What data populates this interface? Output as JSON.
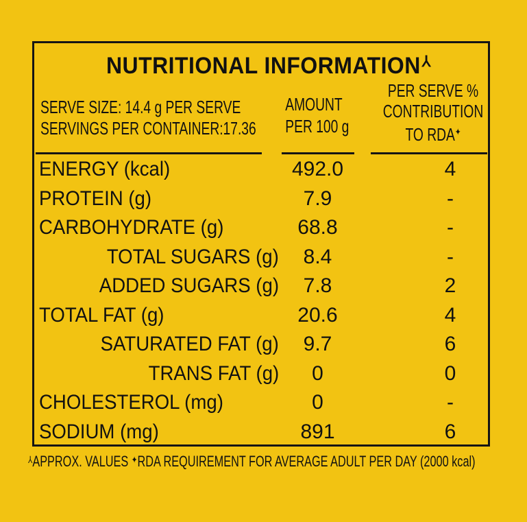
{
  "title": "NUTRITIONAL INFORMATION",
  "title_mark": "⅄",
  "serve_size": "SERVE SIZE: 14.4 g PER SERVE",
  "servings_per_container": "SERVINGS PER CONTAINER:17.36",
  "col_amount": {
    "line1": "AMOUNT",
    "line2": "PER 100 g"
  },
  "col_rda": {
    "line1": "PER SERVE %",
    "line2": "CONTRIBUTION",
    "line3": "TO RDA",
    "mark": "✦"
  },
  "rows": [
    {
      "name": "ENERGY (kcal)",
      "amount": "492.0",
      "rda": "4"
    },
    {
      "name": "PROTEIN (g)",
      "amount": "7.9",
      "rda": "-"
    },
    {
      "name": "CARBOHYDRATE (g)",
      "amount": "68.8",
      "rda": "-"
    },
    {
      "name": "TOTAL SUGARS (g)",
      "amount": "8.4",
      "rda": "-"
    },
    {
      "name": "ADDED SUGARS (g)",
      "amount": "7.8",
      "rda": "2"
    },
    {
      "name": "TOTAL FAT (g)",
      "amount": "20.6",
      "rda": "4"
    },
    {
      "name": "SATURATED FAT (g)",
      "amount": "9.7",
      "rda": "6"
    },
    {
      "name": "TRANS FAT (g)",
      "amount": "0",
      "rda": "0"
    },
    {
      "name": "CHOLESTEROL (mg)",
      "amount": "0",
      "rda": "-"
    },
    {
      "name": "SODIUM (mg)",
      "amount": "891",
      "rda": "6"
    }
  ],
  "footnote": {
    "mark1": "⅄",
    "text1": "APPROX. VALUES ",
    "mark2": "✦",
    "text2": "RDA REQUIREMENT FOR AVERAGE ADULT PER DAY (2000 kcal)"
  },
  "colors": {
    "background": "#f2c312",
    "ink": "#111111"
  }
}
